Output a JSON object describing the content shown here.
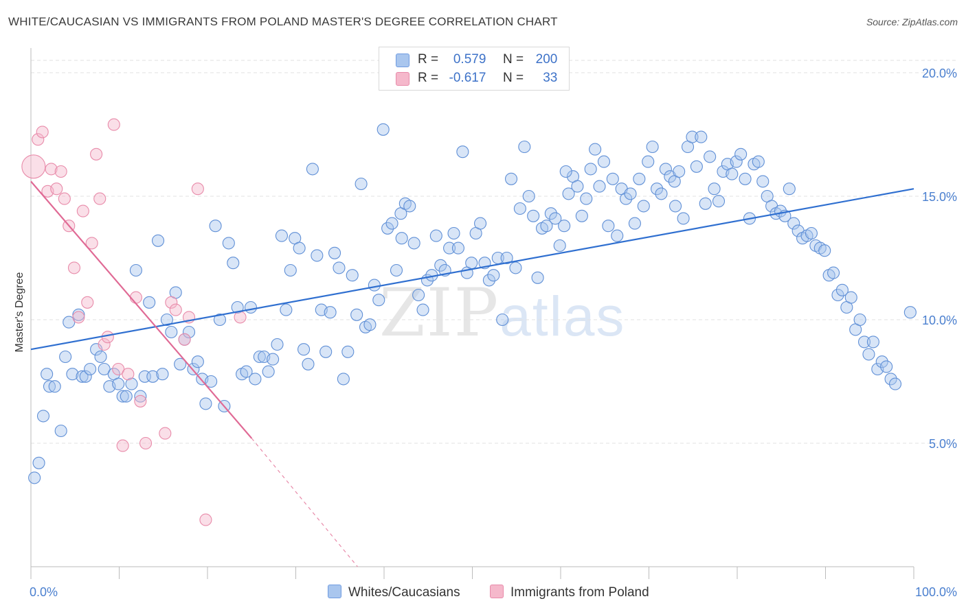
{
  "header": {
    "title": "WHITE/CAUCASIAN VS IMMIGRANTS FROM POLAND MASTER'S DEGREE CORRELATION CHART",
    "source": "Source: ZipAtlas.com"
  },
  "legend": {
    "rows": [
      {
        "r_label": "R =",
        "r_value": "0.579",
        "n_label": "N =",
        "n_value": "200",
        "color": "#a9c6ee"
      },
      {
        "r_label": "R =",
        "r_value": "-0.617",
        "n_label": "N =",
        "n_value": "33",
        "color": "#f5b8cb"
      }
    ]
  },
  "bottom_legend": {
    "items": [
      {
        "label": "Whites/Caucasians",
        "color": "#a9c6ee"
      },
      {
        "label": "Immigrants from Poland",
        "color": "#f5b8cb"
      }
    ]
  },
  "watermark": {
    "zip": "ZIP",
    "atlas": "atlas"
  },
  "chart_data": {
    "type": "scatter",
    "title": "WHITE/CAUCASIAN VS IMMIGRANTS FROM POLAND MASTER'S DEGREE CORRELATION CHART",
    "xlabel": "",
    "ylabel": "Master's Degree",
    "xlim": [
      0,
      100
    ],
    "ylim": [
      0,
      21
    ],
    "x_tick_labels": [
      "0.0%",
      "100.0%"
    ],
    "y_ticks": [
      5,
      10,
      15,
      20
    ],
    "y_tick_labels": [
      "5.0%",
      "10.0%",
      "15.0%",
      "20.0%"
    ],
    "grid": true,
    "colors": {
      "blue": "#3d72c8",
      "blue_fill": "#a9c6ee",
      "pink": "#e06a95",
      "pink_fill": "#f5b8cb"
    },
    "series": [
      {
        "name": "Whites/Caucasians",
        "color": "#3d72c8",
        "trend": {
          "x": [
            0,
            100
          ],
          "y": [
            8.8,
            15.3
          ]
        },
        "points": [
          [
            0.4,
            3.6
          ],
          [
            0.9,
            4.2
          ],
          [
            1.4,
            6.1
          ],
          [
            1.8,
            7.8
          ],
          [
            2.1,
            7.3
          ],
          [
            2.7,
            7.3
          ],
          [
            3.4,
            5.5
          ],
          [
            3.9,
            8.5
          ],
          [
            4.3,
            9.9
          ],
          [
            4.7,
            7.8
          ],
          [
            5.4,
            10.2
          ],
          [
            5.8,
            7.7
          ],
          [
            6.2,
            7.7
          ],
          [
            6.7,
            8.0
          ],
          [
            7.4,
            8.8
          ],
          [
            7.9,
            8.5
          ],
          [
            8.3,
            8.0
          ],
          [
            8.9,
            7.3
          ],
          [
            9.4,
            7.8
          ],
          [
            9.9,
            7.4
          ],
          [
            10.4,
            6.9
          ],
          [
            10.8,
            6.9
          ],
          [
            11.4,
            7.4
          ],
          [
            11.9,
            12.0
          ],
          [
            12.4,
            6.9
          ],
          [
            12.9,
            7.7
          ],
          [
            13.4,
            10.7
          ],
          [
            13.8,
            7.7
          ],
          [
            14.4,
            13.2
          ],
          [
            14.9,
            7.8
          ],
          [
            15.4,
            10.0
          ],
          [
            15.9,
            9.5
          ],
          [
            16.4,
            11.1
          ],
          [
            16.9,
            8.2
          ],
          [
            17.4,
            9.2
          ],
          [
            17.9,
            9.5
          ],
          [
            18.4,
            8.0
          ],
          [
            18.9,
            8.3
          ],
          [
            19.4,
            7.6
          ],
          [
            19.8,
            6.6
          ],
          [
            20.4,
            7.5
          ],
          [
            20.9,
            13.8
          ],
          [
            21.4,
            10.0
          ],
          [
            21.9,
            6.5
          ],
          [
            22.4,
            13.1
          ],
          [
            22.9,
            12.3
          ],
          [
            23.4,
            10.5
          ],
          [
            23.9,
            7.8
          ],
          [
            24.4,
            7.9
          ],
          [
            24.9,
            10.5
          ],
          [
            25.4,
            7.6
          ],
          [
            25.9,
            8.5
          ],
          [
            26.4,
            8.5
          ],
          [
            26.9,
            7.9
          ],
          [
            27.4,
            8.4
          ],
          [
            27.9,
            9.0
          ],
          [
            28.4,
            13.4
          ],
          [
            28.9,
            10.4
          ],
          [
            29.4,
            12.0
          ],
          [
            29.9,
            13.3
          ],
          [
            30.4,
            12.9
          ],
          [
            30.9,
            8.8
          ],
          [
            31.4,
            8.2
          ],
          [
            31.9,
            16.1
          ],
          [
            32.4,
            12.6
          ],
          [
            32.9,
            10.4
          ],
          [
            33.4,
            8.7
          ],
          [
            33.9,
            10.3
          ],
          [
            34.4,
            12.7
          ],
          [
            34.9,
            12.1
          ],
          [
            35.4,
            7.6
          ],
          [
            35.9,
            8.7
          ],
          [
            36.4,
            11.8
          ],
          [
            36.9,
            10.2
          ],
          [
            37.4,
            15.5
          ],
          [
            37.9,
            9.7
          ],
          [
            38.4,
            9.8
          ],
          [
            38.9,
            11.4
          ],
          [
            39.4,
            10.8
          ],
          [
            39.9,
            17.7
          ],
          [
            40.4,
            13.7
          ],
          [
            40.9,
            13.9
          ],
          [
            41.4,
            12.0
          ],
          [
            41.9,
            14.3
          ],
          [
            42.4,
            14.7
          ],
          [
            42.9,
            14.6
          ],
          [
            43.4,
            13.1
          ],
          [
            43.9,
            11.0
          ],
          [
            44.4,
            10.4
          ],
          [
            44.9,
            11.6
          ],
          [
            45.4,
            11.8
          ],
          [
            45.9,
            13.4
          ],
          [
            46.4,
            12.2
          ],
          [
            46.9,
            12.0
          ],
          [
            47.4,
            12.9
          ],
          [
            47.9,
            13.5
          ],
          [
            48.4,
            12.9
          ],
          [
            48.9,
            16.8
          ],
          [
            49.4,
            11.9
          ],
          [
            49.9,
            12.3
          ],
          [
            50.4,
            13.5
          ],
          [
            50.9,
            13.9
          ],
          [
            51.4,
            12.3
          ],
          [
            51.9,
            11.6
          ],
          [
            52.4,
            11.8
          ],
          [
            52.9,
            12.5
          ],
          [
            53.4,
            10.0
          ],
          [
            53.9,
            12.5
          ],
          [
            54.4,
            15.7
          ],
          [
            54.9,
            12.1
          ],
          [
            55.4,
            14.5
          ],
          [
            55.9,
            17.0
          ],
          [
            56.4,
            15.0
          ],
          [
            56.9,
            14.2
          ],
          [
            57.4,
            11.7
          ],
          [
            57.9,
            13.7
          ],
          [
            58.4,
            13.8
          ],
          [
            58.9,
            14.3
          ],
          [
            59.4,
            14.1
          ],
          [
            59.9,
            13.0
          ],
          [
            60.4,
            13.8
          ],
          [
            60.9,
            15.1
          ],
          [
            61.4,
            15.8
          ],
          [
            61.9,
            15.4
          ],
          [
            62.4,
            14.2
          ],
          [
            62.9,
            14.9
          ],
          [
            63.4,
            16.1
          ],
          [
            63.9,
            16.9
          ],
          [
            64.4,
            15.4
          ],
          [
            64.9,
            16.4
          ],
          [
            65.4,
            13.8
          ],
          [
            65.9,
            15.7
          ],
          [
            66.4,
            13.4
          ],
          [
            66.9,
            15.3
          ],
          [
            67.4,
            14.9
          ],
          [
            67.9,
            15.1
          ],
          [
            68.4,
            13.9
          ],
          [
            68.9,
            15.7
          ],
          [
            69.4,
            14.6
          ],
          [
            69.9,
            16.4
          ],
          [
            70.4,
            17.0
          ],
          [
            70.9,
            15.3
          ],
          [
            71.4,
            15.1
          ],
          [
            71.9,
            16.1
          ],
          [
            72.4,
            15.8
          ],
          [
            72.9,
            15.6
          ],
          [
            73.4,
            16.0
          ],
          [
            73.9,
            14.1
          ],
          [
            74.4,
            17.0
          ],
          [
            74.9,
            17.4
          ],
          [
            75.4,
            16.2
          ],
          [
            75.9,
            17.4
          ],
          [
            76.4,
            14.7
          ],
          [
            76.9,
            16.6
          ],
          [
            77.4,
            15.3
          ],
          [
            77.9,
            14.8
          ],
          [
            78.4,
            16.0
          ],
          [
            78.9,
            16.3
          ],
          [
            79.4,
            15.9
          ],
          [
            79.9,
            16.4
          ],
          [
            80.4,
            16.7
          ],
          [
            80.9,
            15.7
          ],
          [
            81.4,
            14.1
          ],
          [
            81.9,
            16.3
          ],
          [
            82.4,
            16.4
          ],
          [
            82.9,
            15.6
          ],
          [
            83.4,
            15.0
          ],
          [
            83.9,
            14.6
          ],
          [
            84.4,
            14.3
          ],
          [
            84.9,
            14.4
          ],
          [
            85.4,
            14.2
          ],
          [
            85.9,
            15.3
          ],
          [
            86.4,
            13.9
          ],
          [
            86.9,
            13.6
          ],
          [
            87.4,
            13.3
          ],
          [
            87.9,
            13.4
          ],
          [
            88.4,
            13.5
          ],
          [
            88.9,
            13.0
          ],
          [
            89.4,
            12.9
          ],
          [
            89.9,
            12.8
          ],
          [
            90.4,
            11.8
          ],
          [
            90.9,
            11.9
          ],
          [
            91.4,
            11.0
          ],
          [
            91.9,
            11.2
          ],
          [
            92.4,
            10.5
          ],
          [
            92.9,
            10.9
          ],
          [
            93.4,
            9.6
          ],
          [
            93.9,
            10.0
          ],
          [
            94.4,
            9.1
          ],
          [
            94.9,
            8.6
          ],
          [
            95.4,
            9.1
          ],
          [
            95.9,
            8.0
          ],
          [
            96.4,
            8.3
          ],
          [
            96.9,
            8.1
          ],
          [
            97.4,
            7.6
          ],
          [
            97.9,
            7.4
          ],
          [
            42.0,
            13.3
          ],
          [
            60.6,
            16.0
          ],
          [
            73.0,
            14.6
          ],
          [
            99.6,
            10.3
          ]
        ]
      },
      {
        "name": "Immigrants from Poland",
        "color": "#e06a95",
        "trend": {
          "x": [
            0,
            25
          ],
          "y": [
            15.6,
            5.2
          ],
          "dashed_to": [
            37,
            0
          ]
        },
        "points": [
          [
            0.3,
            16.2
          ],
          [
            0.8,
            17.3
          ],
          [
            1.3,
            17.6
          ],
          [
            1.9,
            15.2
          ],
          [
            2.3,
            16.1
          ],
          [
            2.9,
            15.3
          ],
          [
            3.4,
            16.0
          ],
          [
            3.8,
            14.9
          ],
          [
            4.3,
            13.8
          ],
          [
            4.9,
            12.1
          ],
          [
            5.4,
            10.1
          ],
          [
            5.9,
            14.4
          ],
          [
            6.4,
            10.7
          ],
          [
            6.9,
            13.1
          ],
          [
            7.4,
            16.7
          ],
          [
            7.8,
            14.9
          ],
          [
            8.3,
            9.0
          ],
          [
            8.7,
            9.3
          ],
          [
            9.4,
            17.9
          ],
          [
            9.9,
            8.0
          ],
          [
            10.4,
            4.9
          ],
          [
            11.0,
            7.8
          ],
          [
            11.9,
            10.9
          ],
          [
            12.4,
            6.7
          ],
          [
            13.0,
            5.0
          ],
          [
            15.2,
            5.4
          ],
          [
            15.9,
            10.7
          ],
          [
            16.4,
            10.4
          ],
          [
            17.4,
            9.2
          ],
          [
            17.9,
            10.1
          ],
          [
            18.9,
            15.3
          ],
          [
            19.8,
            1.9
          ],
          [
            23.7,
            10.1
          ]
        ]
      }
    ]
  }
}
